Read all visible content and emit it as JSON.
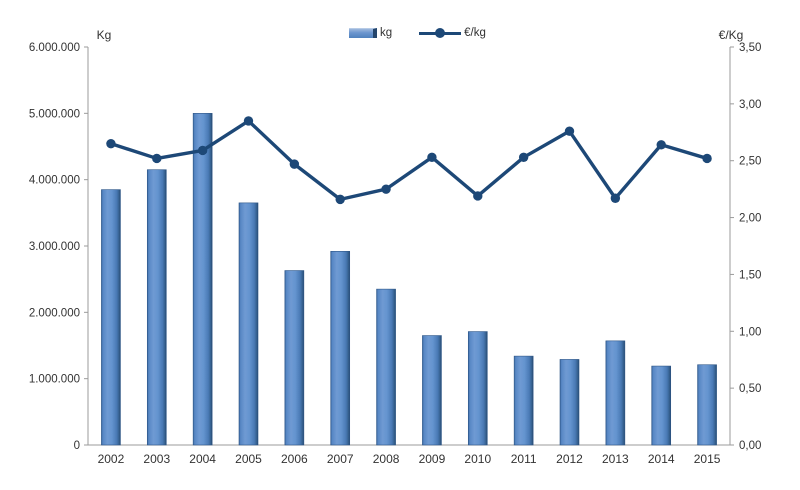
{
  "chart_data": {
    "type": "combo-bar-line",
    "title": "",
    "categories": [
      "2002",
      "2003",
      "2004",
      "2005",
      "2006",
      "2007",
      "2008",
      "2009",
      "2010",
      "2011",
      "2012",
      "2013",
      "2014",
      "2015"
    ],
    "series": [
      {
        "name": "kg",
        "type": "bar",
        "axis": "left",
        "values": [
          3850000,
          4150000,
          5000000,
          3650000,
          2630000,
          2920000,
          2350000,
          1650000,
          1710000,
          1340000,
          1290000,
          1570000,
          1190000,
          1210000
        ]
      },
      {
        "name": "€/kg",
        "type": "line",
        "axis": "right",
        "values": [
          2.65,
          2.52,
          2.59,
          2.85,
          2.47,
          2.16,
          2.25,
          2.53,
          2.19,
          2.53,
          2.76,
          2.17,
          2.64,
          2.52
        ]
      }
    ],
    "left_axis": {
      "title": "Kg",
      "min": 0,
      "max": 6000000,
      "step": 1000000,
      "tick_labels": [
        "0",
        "1.000.000",
        "2.000.000",
        "3.000.000",
        "4.000.000",
        "5.000.000",
        "6.000.000"
      ]
    },
    "right_axis": {
      "title": "€/Kg",
      "min": 0,
      "max": 3.5,
      "step": 0.5,
      "tick_labels": [
        "0,00",
        "0,50",
        "1,00",
        "1,50",
        "2,00",
        "2,50",
        "3,00",
        "3,50"
      ]
    },
    "legend": {
      "position": "top-center",
      "items": [
        {
          "label": "kg",
          "marker": "bar-swatch-icon"
        },
        {
          "label": "€/kg",
          "marker": "line-marker-icon"
        }
      ]
    },
    "grid": false
  },
  "colors": {
    "bar_main": "#4f81bd",
    "bar_light": "#6f9ad3",
    "bar_dark": "#27496d",
    "bar_stroke": "#2d5587",
    "line": "#1d4877",
    "axis": "#9b9b9b",
    "text": "#333333"
  }
}
